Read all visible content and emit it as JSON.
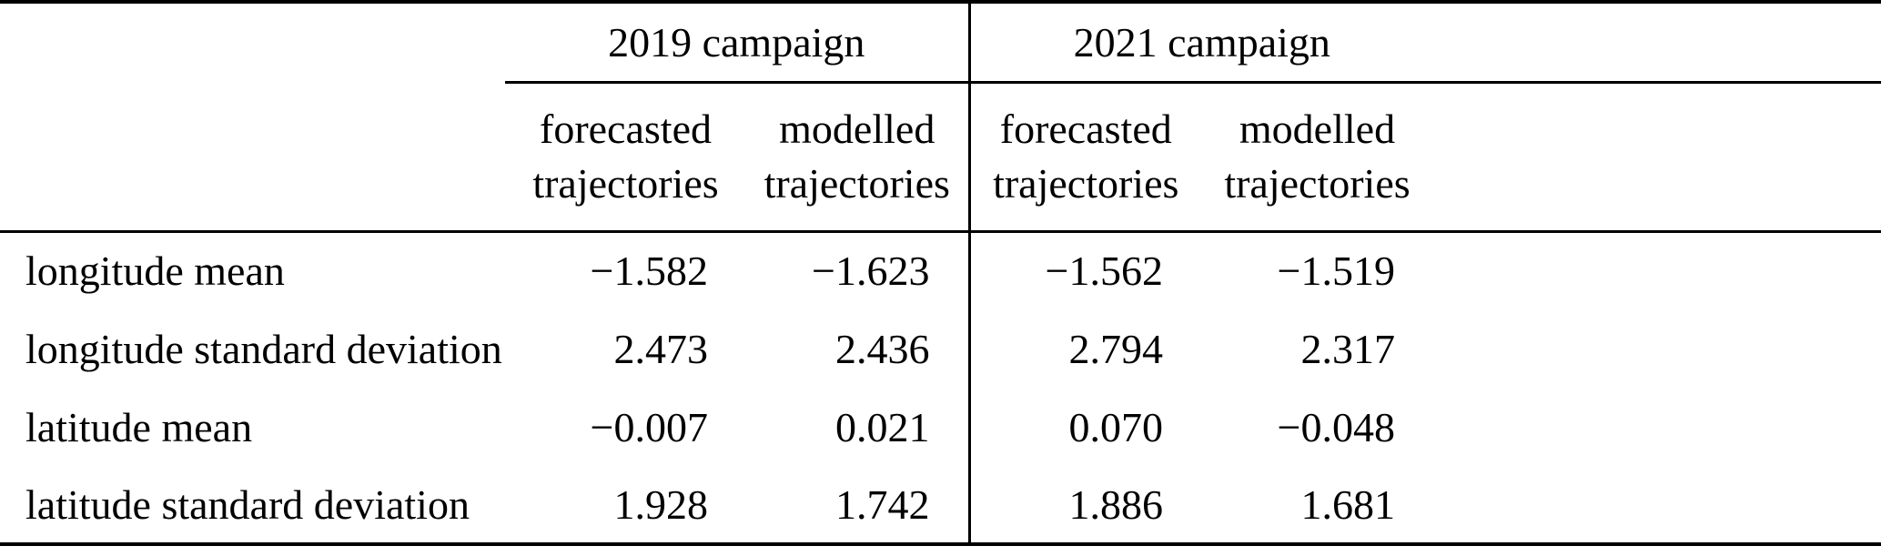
{
  "colors": {
    "text": "#000000",
    "background": "#ffffff",
    "rules": "#000000"
  },
  "table": {
    "column_groups": [
      {
        "label": "2019 campaign",
        "columns": [
          "forecasted trajectories",
          "modelled trajectories"
        ]
      },
      {
        "label": "2021 campaign",
        "columns": [
          "forecasted trajectories",
          "modelled trajectories"
        ]
      }
    ],
    "rows": [
      {
        "label": "longitude mean",
        "values": [
          "−1.582",
          "−1.623",
          "−1.562",
          "−1.519"
        ]
      },
      {
        "label": "longitude standard deviation",
        "values": [
          "2.473",
          "2.436",
          "2.794",
          "2.317"
        ]
      },
      {
        "label": "latitude mean",
        "values": [
          "−0.007",
          "0.021",
          "0.070",
          "−0.048"
        ]
      },
      {
        "label": "latitude standard deviation",
        "values": [
          "1.928",
          "1.742",
          "1.886",
          "1.681"
        ]
      }
    ]
  }
}
